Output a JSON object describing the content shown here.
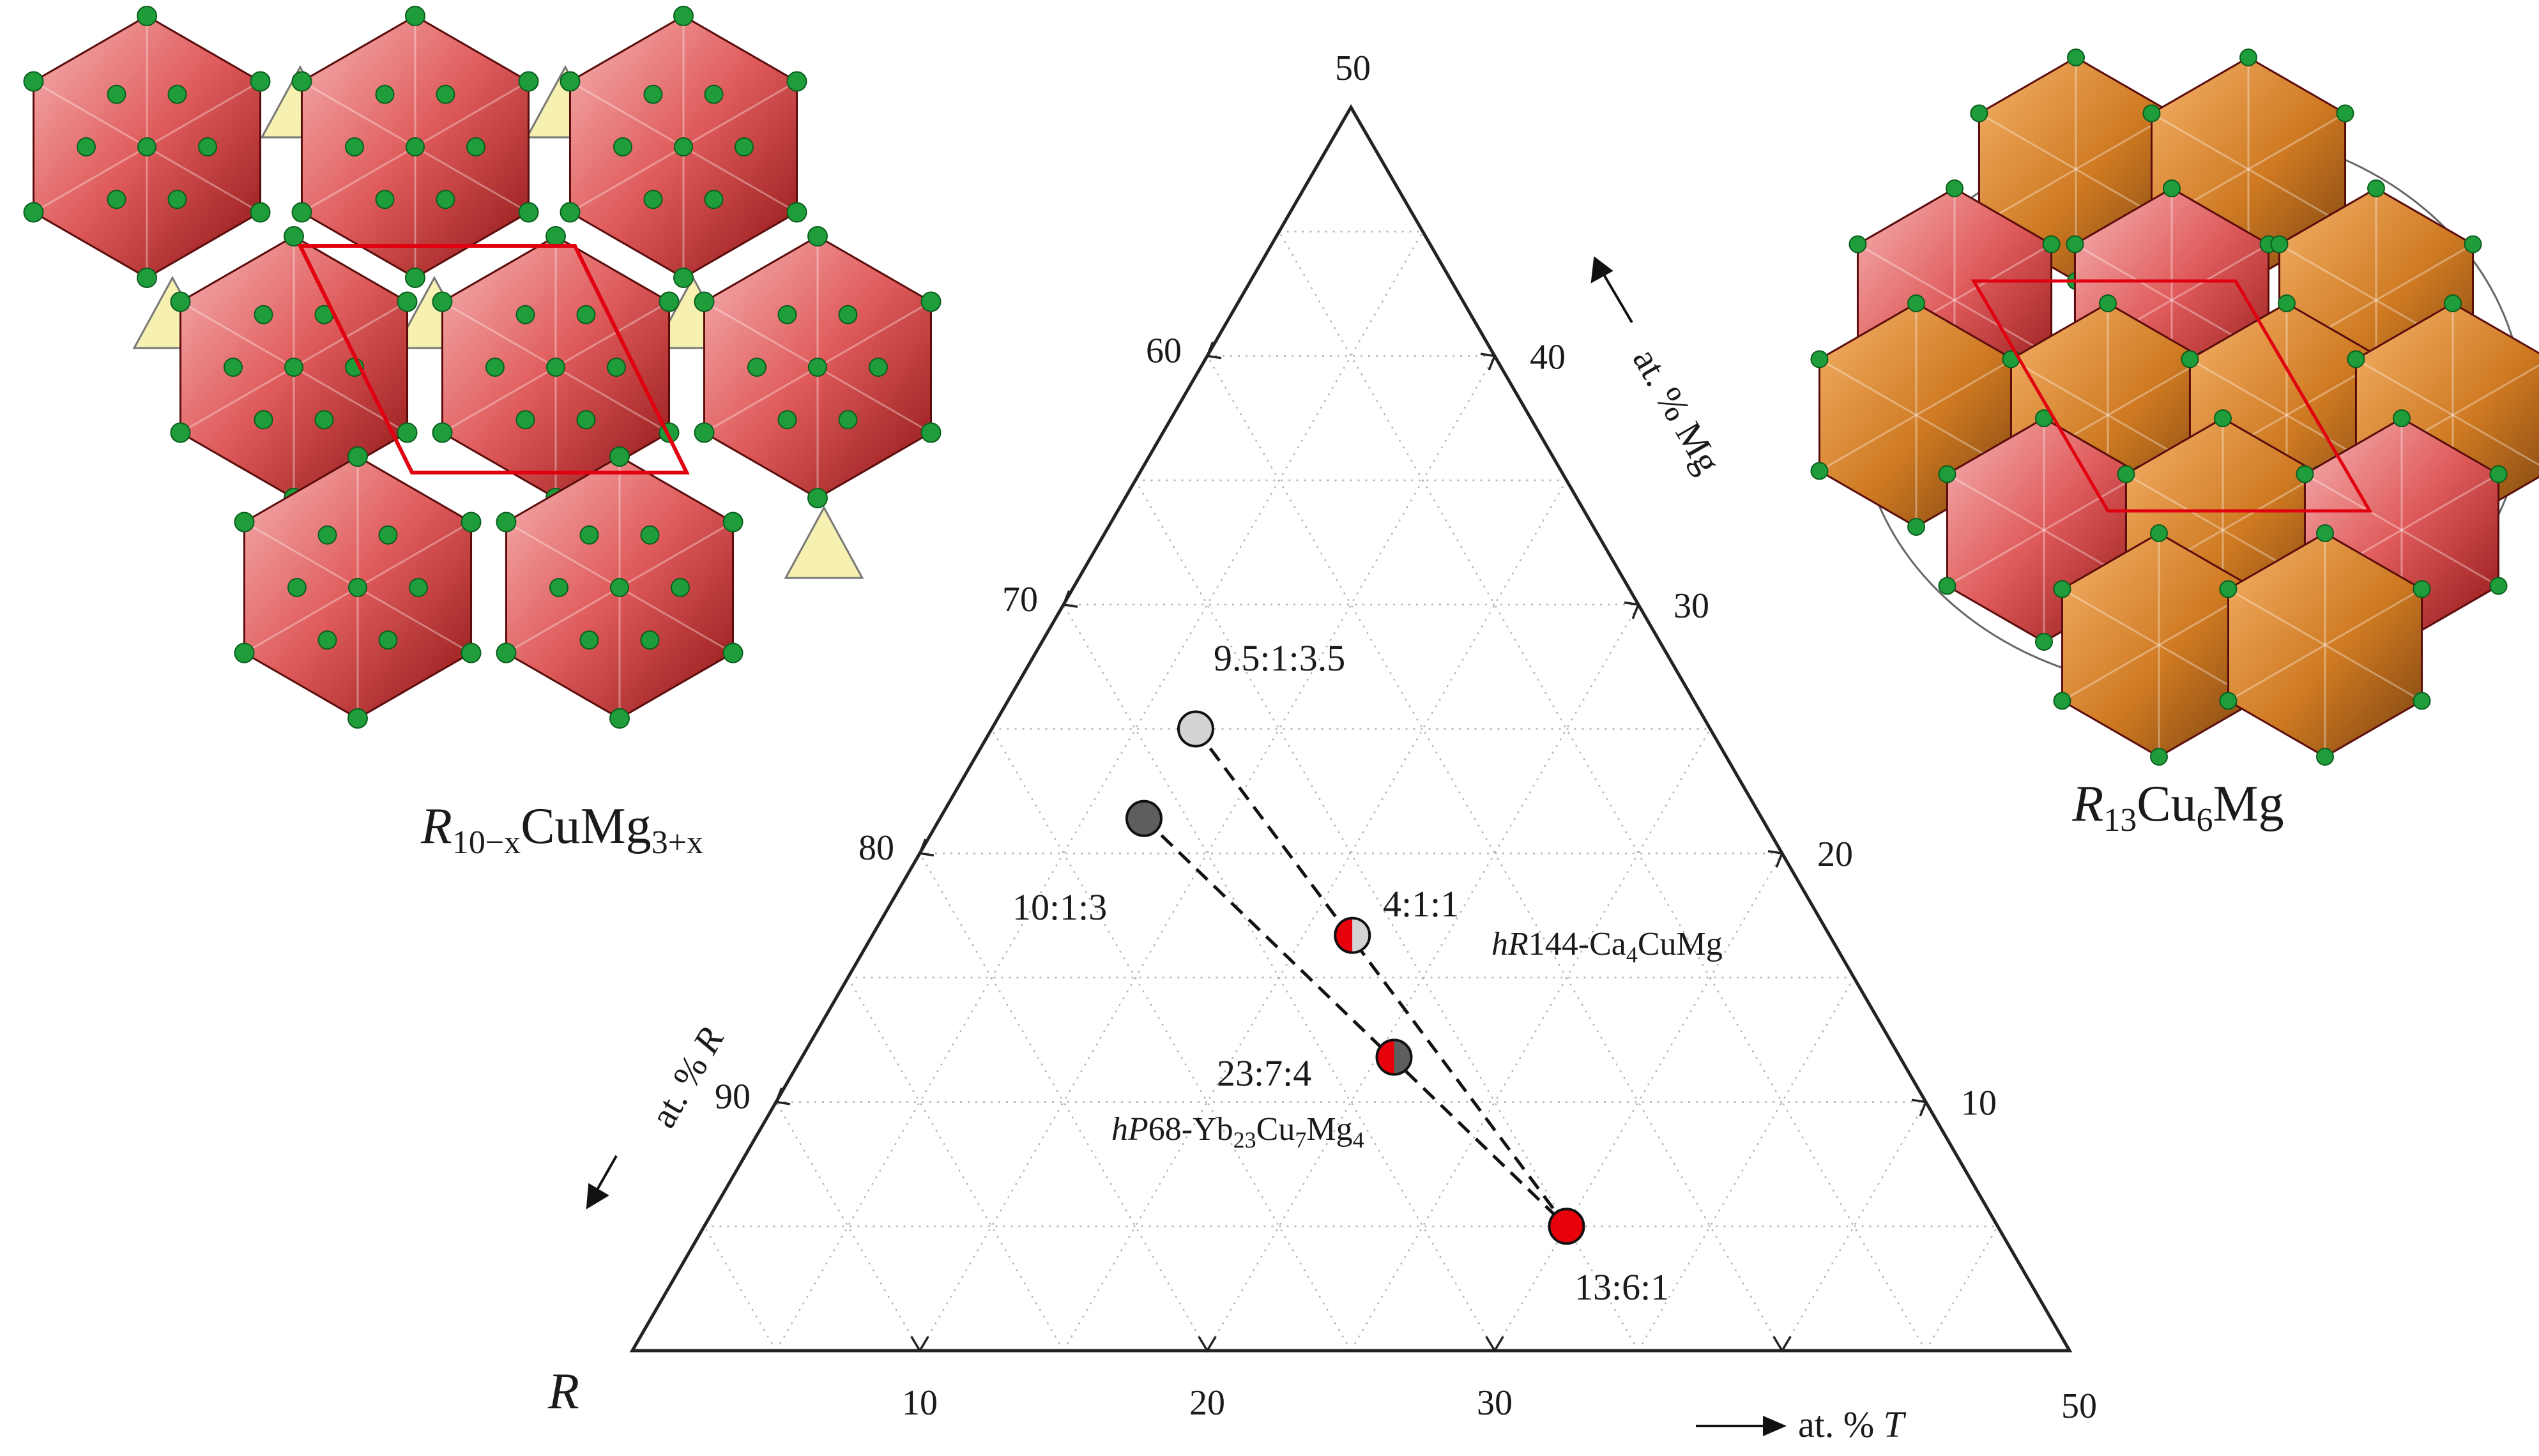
{
  "diagram": {
    "corner_labels": {
      "left": "R"
    },
    "apex_tick": "50",
    "right_corner_tick": "50",
    "bottom_ticks": [
      "10",
      "20",
      "30"
    ],
    "left_ticks": [
      "60",
      "70",
      "80",
      "90"
    ],
    "right_ticks": [
      "40",
      "30",
      "20",
      "10"
    ],
    "axis_titles": {
      "left": {
        "prefix": "at. % ",
        "var": "R"
      },
      "right": {
        "prefix": "at. % ",
        "var": "Mg"
      },
      "bottom": {
        "prefix": "at. % ",
        "var": "T"
      }
    },
    "points": [
      {
        "label": "9.5:1:3.5",
        "R": 67.9,
        "T": 7.1,
        "Mg": 25.0,
        "fill": "#d3d3d3"
      },
      {
        "label": "10:1:3",
        "R": 71.4,
        "T": 7.1,
        "Mg": 21.4,
        "fill": "#5e5e5e"
      },
      {
        "label": "4:1:1",
        "R": 66.7,
        "T": 16.7,
        "Mg": 16.7,
        "fill_left": "#e8000a",
        "fill_right": "#d3d3d3"
      },
      {
        "label": "23:7:4",
        "R": 67.6,
        "T": 20.6,
        "Mg": 11.8,
        "fill_left": "#e8000a",
        "fill_right": "#5e5e5e"
      },
      {
        "label": "13:6:1",
        "R": 65.0,
        "T": 30.0,
        "Mg": 5.0,
        "fill": "#e8000a"
      }
    ],
    "tie_lines": [
      [
        "9.5:1:3.5",
        "13:6:1"
      ],
      [
        "10:1:3",
        "13:6:1"
      ]
    ],
    "phase_labels": {
      "hr144": {
        "it": "hR",
        "rest": "144-Ca",
        "sub": "4",
        "tail": "CuMg"
      },
      "hp68": {
        "it": "hP",
        "rest": "68-Yb",
        "sub1": "23",
        "mid1": "Cu",
        "sub2": "7",
        "mid2": "Mg",
        "sub3": "4"
      }
    }
  },
  "structures": {
    "left_title": {
      "it": "R",
      "sub1": "10−x",
      "mid": "CuMg",
      "sub2": "3+x"
    },
    "right_title": {
      "it": "R",
      "sub1": "13",
      "mid": "Cu",
      "sub2": "6",
      "tail": "Mg"
    }
  }
}
